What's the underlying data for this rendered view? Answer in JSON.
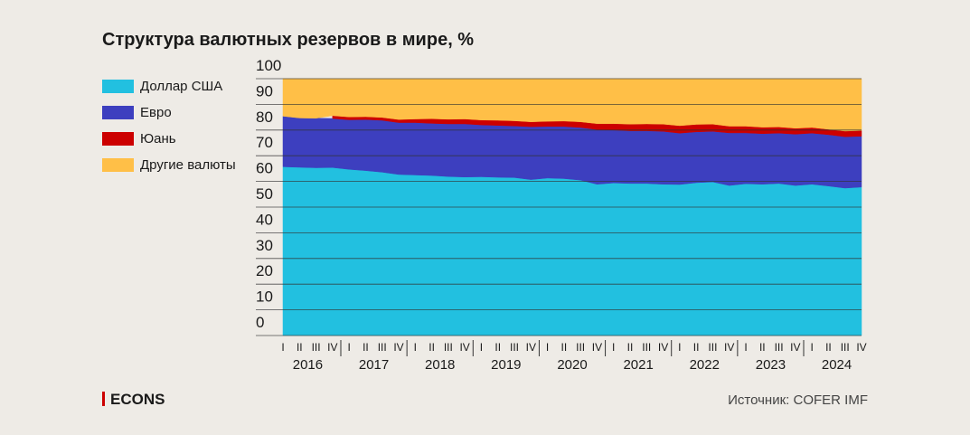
{
  "chart_data": {
    "type": "stacked_area",
    "title": "Структура валютных резервов в мире, %",
    "categories": [
      "I",
      "II",
      "III",
      "IV",
      "I",
      "II",
      "III",
      "IV",
      "I",
      "II",
      "III",
      "IV",
      "I",
      "II",
      "III",
      "IV",
      "I",
      "II",
      "III",
      "IV",
      "I",
      "II",
      "III",
      "IV",
      "I",
      "II",
      "III",
      "IV",
      "I",
      "II",
      "III",
      "IV",
      "I",
      "II",
      "III",
      "IV"
    ],
    "years": [
      "2016",
      "2017",
      "2018",
      "2019",
      "2020",
      "2021",
      "2022",
      "2023",
      "2024"
    ],
    "series": [
      {
        "name": "Доллар США",
        "color": "#22c0e0",
        "values": [
          65.7,
          65.5,
          65.3,
          65.4,
          64.7,
          64.2,
          63.6,
          62.7,
          62.5,
          62.3,
          61.9,
          61.7,
          61.8,
          61.6,
          61.5,
          60.7,
          61.3,
          61.1,
          60.5,
          58.9,
          59.4,
          59.2,
          59.2,
          58.9,
          58.8,
          59.5,
          59.8,
          58.4,
          59.1,
          58.9,
          59.2,
          58.4,
          58.9,
          58.2,
          57.4,
          57.8
        ]
      },
      {
        "name": "Евро",
        "color": "#3d3fbf",
        "values": [
          19.7,
          19.2,
          19.3,
          19.1,
          19.3,
          19.9,
          20.2,
          20.2,
          20.4,
          20.3,
          20.5,
          20.7,
          20.2,
          20.2,
          20.1,
          20.6,
          20.1,
          20.3,
          20.5,
          21.3,
          20.6,
          20.5,
          20.5,
          20.6,
          20.0,
          19.8,
          19.7,
          20.5,
          19.8,
          19.7,
          19.6,
          20.0,
          19.9,
          20.0,
          20.0,
          19.8
        ]
      },
      {
        "name": "Юань",
        "color": "#cc0000",
        "values": [
          null,
          null,
          null,
          1.1,
          1.1,
          1.1,
          1.1,
          1.2,
          1.4,
          1.8,
          1.8,
          1.9,
          1.9,
          2.0,
          2.0,
          1.9,
          2.0,
          2.1,
          2.2,
          2.3,
          2.5,
          2.6,
          2.7,
          2.8,
          2.9,
          2.9,
          2.8,
          2.6,
          2.6,
          2.5,
          2.4,
          2.3,
          2.2,
          2.1,
          2.2,
          2.2
        ]
      },
      {
        "name": "Другие валюты",
        "color": "#ffbf47",
        "values": [
          14.6,
          15.3,
          15.4,
          14.4,
          14.9,
          14.8,
          15.1,
          15.9,
          15.7,
          15.6,
          15.8,
          15.7,
          16.1,
          16.2,
          16.4,
          16.8,
          16.6,
          16.5,
          16.8,
          17.5,
          17.5,
          17.7,
          17.6,
          17.7,
          18.3,
          17.8,
          17.7,
          18.5,
          18.5,
          18.9,
          18.8,
          19.3,
          19.0,
          19.7,
          20.4,
          20.2
        ]
      }
    ],
    "ylim": [
      0,
      100
    ],
    "yticks": [
      0,
      10,
      20,
      30,
      40,
      50,
      60,
      70,
      80,
      90,
      100
    ],
    "grid": true
  },
  "footer": {
    "logo": "ECONS",
    "source": "Источник: COFER IMF"
  }
}
